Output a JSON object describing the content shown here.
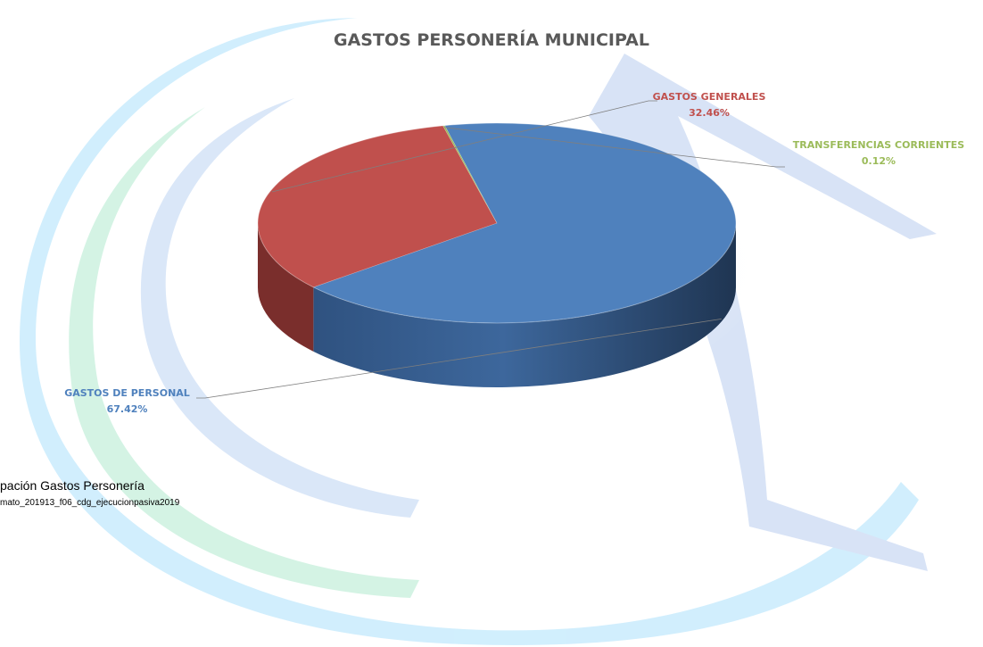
{
  "chart_data": {
    "type": "pie",
    "title": "GASTOS PERSONERÍA MUNICIPAL",
    "categories": [
      "GASTOS DE PERSONAL",
      "GASTOS GENERALES",
      "TRANSFERENCIAS CORRIENTES"
    ],
    "values": [
      67.42,
      32.46,
      0.12
    ],
    "value_labels": [
      "67.42%",
      "32.46%",
      "0.12%"
    ],
    "colors": [
      "#4f81bd",
      "#c0504d",
      "#9bbb59"
    ],
    "side_colors": [
      "#2c4d76",
      "#7a2e2c",
      "#5e7535"
    ]
  },
  "footer": {
    "caption": "pación Gastos Personería",
    "source": "mato_201913_f06_cdg_ejecucionpasiva2019"
  }
}
